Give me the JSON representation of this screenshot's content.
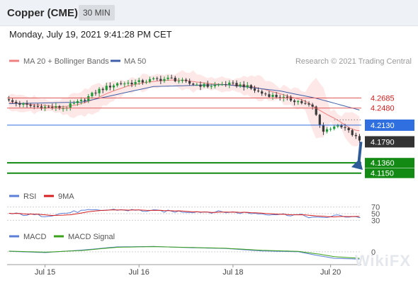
{
  "header": {
    "title": "Copper (CME)",
    "timeframe": "30 MIN",
    "datetime": "Monday, July 19, 2021 9:41:28 PM CET"
  },
  "legend": {
    "ma20_bb": "MA 20 + Bollinger Bands",
    "ma50": "MA 50",
    "research": "Research © 2021 Trading Central"
  },
  "colors": {
    "ma20": "#f08080",
    "band_fill": "#fde3e3",
    "ma50": "#3f5fa8",
    "candle_up": "#1f9a38",
    "candle_down": "#3a3a3a",
    "resistance": "#e05a5a",
    "pivot": "#2f6fe0",
    "support": "#138a13",
    "rsi": "#5b7fd6",
    "rsi_ma": "#d62020",
    "macd": "#5b7fd6",
    "macd_signal": "#3aa11a",
    "arrow": "#2f5c99"
  },
  "watermark": "WikiFX",
  "chart_data": {
    "type": "candlestick",
    "price_panel": {
      "ylim": [
        4.09,
        4.33
      ],
      "levels": [
        {
          "label": "4.2685",
          "value": 4.2685,
          "kind": "resistance"
        },
        {
          "label": "4.2480",
          "value": 4.248,
          "kind": "resistance"
        },
        {
          "label": "4.2130",
          "value": 4.213,
          "kind": "pivot"
        },
        {
          "label": "4.1790",
          "value": 4.179,
          "kind": "last"
        },
        {
          "label": "4.1360",
          "value": 4.136,
          "kind": "support"
        },
        {
          "label": "4.1150",
          "value": 4.115,
          "kind": "support"
        }
      ],
      "close_keypoints": [
        [
          0,
          4.262
        ],
        [
          5,
          4.253
        ],
        [
          10,
          4.25
        ],
        [
          15,
          4.248
        ],
        [
          20,
          4.262
        ],
        [
          25,
          4.285
        ],
        [
          30,
          4.298
        ],
        [
          35,
          4.3
        ],
        [
          40,
          4.306
        ],
        [
          45,
          4.308
        ],
        [
          50,
          4.298
        ],
        [
          55,
          4.293
        ],
        [
          60,
          4.297
        ],
        [
          65,
          4.294
        ],
        [
          70,
          4.278
        ],
        [
          75,
          4.27
        ],
        [
          80,
          4.262
        ],
        [
          84,
          4.25
        ],
        [
          87,
          4.2
        ],
        [
          90,
          4.212
        ],
        [
          93,
          4.206
        ],
        [
          97,
          4.182
        ]
      ],
      "ma50_keypoints": [
        [
          0,
          4.257
        ],
        [
          20,
          4.26
        ],
        [
          40,
          4.292
        ],
        [
          60,
          4.296
        ],
        [
          75,
          4.283
        ],
        [
          85,
          4.268
        ],
        [
          97,
          4.244
        ]
      ],
      "forecast_arrow": {
        "from": 4.179,
        "to": 4.136
      }
    },
    "rsi": {
      "title": "RSI",
      "ma_name": "9MA",
      "ticks": [
        30,
        50,
        70
      ],
      "ylim": [
        20,
        80
      ],
      "keypoints": [
        [
          0,
          50
        ],
        [
          10,
          44
        ],
        [
          20,
          58
        ],
        [
          25,
          60
        ],
        [
          30,
          62
        ],
        [
          40,
          58
        ],
        [
          50,
          56
        ],
        [
          60,
          55
        ],
        [
          70,
          50
        ],
        [
          80,
          46
        ],
        [
          86,
          36
        ],
        [
          90,
          44
        ],
        [
          93,
          42
        ],
        [
          97,
          40
        ]
      ]
    },
    "macd": {
      "title": "MACD",
      "signal_name": "MACD Signal",
      "ticks": [
        0
      ],
      "ylim": [
        -0.014,
        0.012
      ],
      "macd_keypoints": [
        [
          0,
          0.0005
        ],
        [
          10,
          -0.001
        ],
        [
          20,
          0.002
        ],
        [
          30,
          0.006
        ],
        [
          40,
          0.0065
        ],
        [
          50,
          0.005
        ],
        [
          60,
          0.004
        ],
        [
          70,
          0.001
        ],
        [
          80,
          0.0
        ],
        [
          86,
          -0.005
        ],
        [
          90,
          -0.008
        ],
        [
          97,
          -0.009
        ]
      ],
      "signal_keypoints": [
        [
          0,
          0.0008
        ],
        [
          10,
          -0.0005
        ],
        [
          20,
          0.0015
        ],
        [
          30,
          0.0055
        ],
        [
          40,
          0.0063
        ],
        [
          50,
          0.0053
        ],
        [
          60,
          0.0043
        ],
        [
          70,
          0.0018
        ],
        [
          80,
          0.0005
        ],
        [
          86,
          -0.003
        ],
        [
          90,
          -0.006
        ],
        [
          97,
          -0.008
        ]
      ]
    },
    "x_axis": {
      "n_bars": 98,
      "ticks": [
        {
          "label": "Jul 15",
          "index": 10
        },
        {
          "label": "Jul 16",
          "index": 36
        },
        {
          "label": "Jul 18",
          "index": 62
        },
        {
          "label": "Jul 20",
          "index": 89
        }
      ]
    }
  }
}
